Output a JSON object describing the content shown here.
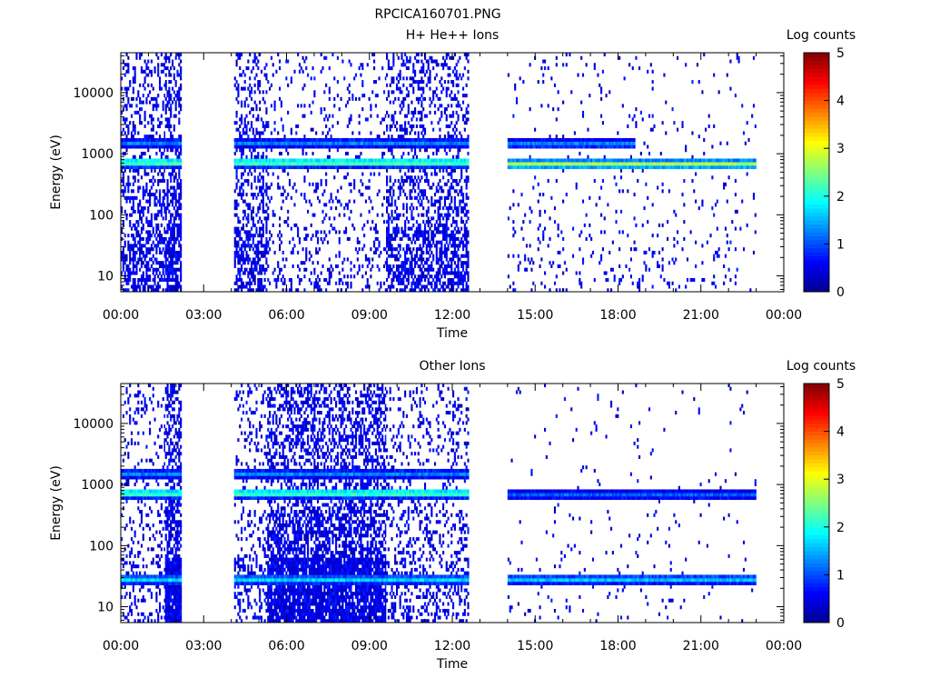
{
  "figure": {
    "title": "RPCICA160701.PNG"
  },
  "colormap": {
    "stops": [
      "#00008f",
      "#0000ff",
      "#0080ff",
      "#00ffff",
      "#80ff80",
      "#ffff00",
      "#ff8000",
      "#ff0000",
      "#800000"
    ]
  },
  "chart_data": [
    {
      "type": "heatmap",
      "title": "H+ He++ Ions",
      "xlabel": "Time",
      "ylabel": "Energy (eV)",
      "x_unit": "hours",
      "xlim": [
        0,
        24
      ],
      "x_ticks": [
        0,
        3,
        6,
        9,
        12,
        15,
        18,
        21,
        24
      ],
      "x_tick_labels": [
        "00:00",
        "03:00",
        "06:00",
        "09:00",
        "12:00",
        "15:00",
        "18:00",
        "21:00",
        "00:00"
      ],
      "y_scale": "log",
      "ylim": [
        5.5,
        45000
      ],
      "y_ticks": [
        10,
        100,
        1000,
        10000
      ],
      "y_tick_labels": [
        "10",
        "100",
        "1000",
        "10000"
      ],
      "colorbar": {
        "label": "Log counts",
        "range": [
          0,
          5
        ],
        "tick_labels": [
          "0",
          "1",
          "2",
          "3",
          "4",
          "5"
        ]
      },
      "data_intervals": [
        {
          "start": 0.0,
          "end": 1.6,
          "background": 0.35
        },
        {
          "start": 1.6,
          "end": 2.2,
          "background": 0.5
        },
        {
          "start": 4.1,
          "end": 5.3,
          "background": 0.35
        },
        {
          "start": 5.3,
          "end": 9.6,
          "background": 0.12
        },
        {
          "start": 9.6,
          "end": 12.6,
          "background": 0.35
        },
        {
          "start": 14.0,
          "end": 23.0,
          "background": 0.04
        }
      ],
      "bands": [
        {
          "start": 0.0,
          "end": 12.6,
          "energy": 720,
          "value": 2.7
        },
        {
          "start": 0.0,
          "end": 12.6,
          "energy": 1500,
          "value": 1.3
        },
        {
          "start": 14.0,
          "end": 23.0,
          "energy": 680,
          "value": 2.8
        },
        {
          "start": 14.0,
          "end": 18.6,
          "energy": 1450,
          "value": 1.4
        }
      ]
    },
    {
      "type": "heatmap",
      "title": "Other Ions",
      "xlabel": "Time",
      "ylabel": "Energy (eV)",
      "x_unit": "hours",
      "xlim": [
        0,
        24
      ],
      "x_ticks": [
        0,
        3,
        6,
        9,
        12,
        15,
        18,
        21,
        24
      ],
      "x_tick_labels": [
        "00:00",
        "03:00",
        "06:00",
        "09:00",
        "12:00",
        "15:00",
        "18:00",
        "21:00",
        "00:00"
      ],
      "y_scale": "log",
      "ylim": [
        5.5,
        45000
      ],
      "y_ticks": [
        10,
        100,
        1000,
        10000
      ],
      "y_tick_labels": [
        "10",
        "100",
        "1000",
        "10000"
      ],
      "colorbar": {
        "label": "Log counts",
        "range": [
          0,
          5
        ],
        "tick_labels": [
          "0",
          "1",
          "2",
          "3",
          "4",
          "5"
        ]
      },
      "data_intervals": [
        {
          "start": 0.0,
          "end": 1.6,
          "background": 0.15
        },
        {
          "start": 1.6,
          "end": 2.2,
          "background": 0.6
        },
        {
          "start": 4.1,
          "end": 5.3,
          "background": 0.2
        },
        {
          "start": 5.3,
          "end": 9.6,
          "background": 0.55
        },
        {
          "start": 9.6,
          "end": 12.6,
          "background": 0.2
        },
        {
          "start": 14.0,
          "end": 23.0,
          "background": 0.02
        }
      ],
      "bands": [
        {
          "start": 0.0,
          "end": 12.6,
          "energy": 720,
          "value": 2.6
        },
        {
          "start": 0.0,
          "end": 12.6,
          "energy": 1500,
          "value": 1.3
        },
        {
          "start": 0.0,
          "end": 12.6,
          "energy": 28,
          "value": 1.8
        },
        {
          "start": 14.0,
          "end": 23.0,
          "energy": 680,
          "value": 1.1
        },
        {
          "start": 14.0,
          "end": 23.0,
          "energy": 28,
          "value": 1.7
        }
      ]
    }
  ]
}
